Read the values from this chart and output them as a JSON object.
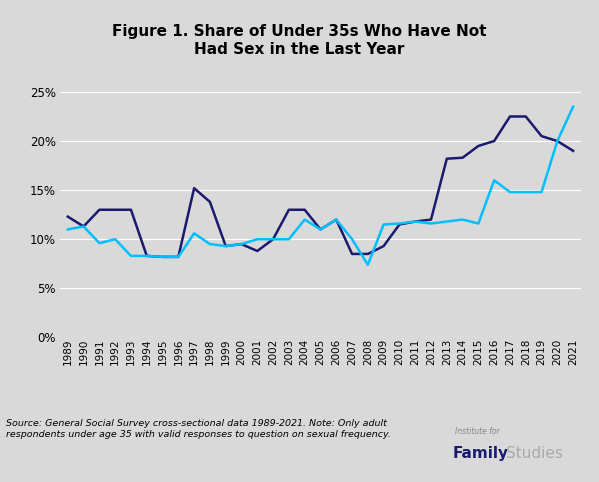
{
  "title": "Figure 1. Share of Under 35s Who Have Not\nHad Sex in the Last Year",
  "years": [
    1989,
    1990,
    1991,
    1992,
    1993,
    1994,
    1995,
    1996,
    1997,
    1998,
    1999,
    2000,
    2001,
    2002,
    2003,
    2004,
    2005,
    2006,
    2007,
    2008,
    2009,
    2010,
    2011,
    2012,
    2013,
    2014,
    2015,
    2016,
    2017,
    2018,
    2019,
    2020,
    2021
  ],
  "males": [
    0.123,
    0.113,
    0.13,
    0.13,
    0.13,
    0.083,
    0.082,
    0.082,
    0.152,
    0.138,
    0.093,
    0.095,
    0.088,
    0.1,
    0.13,
    0.13,
    0.11,
    0.12,
    0.085,
    0.085,
    0.093,
    0.115,
    0.118,
    0.12,
    0.182,
    0.183,
    0.195,
    0.2,
    0.225,
    0.225,
    0.205,
    0.2,
    0.19
  ],
  "females": [
    0.11,
    0.113,
    0.096,
    0.1,
    0.083,
    0.083,
    0.082,
    0.082,
    0.106,
    0.095,
    0.093,
    0.095,
    0.1,
    0.1,
    0.1,
    0.12,
    0.11,
    0.12,
    0.1,
    0.074,
    0.115,
    0.116,
    0.118,
    0.116,
    0.118,
    0.12,
    0.116,
    0.16,
    0.148,
    0.148,
    0.148,
    0.2,
    0.235
  ],
  "male_color": "#1a1a6e",
  "female_color": "#00bfff",
  "background_color": "#d9d9d9",
  "ylim": [
    0,
    0.27
  ],
  "yticks": [
    0,
    0.05,
    0.1,
    0.15,
    0.2,
    0.25
  ],
  "source_text": "Source: General Social Survey cross-sectional data 1989-2021. Note: Only adult\nrespondents under age 35 with valid responses to question on sexual frequency.",
  "line_width": 1.8,
  "grid_color": "#ffffff"
}
